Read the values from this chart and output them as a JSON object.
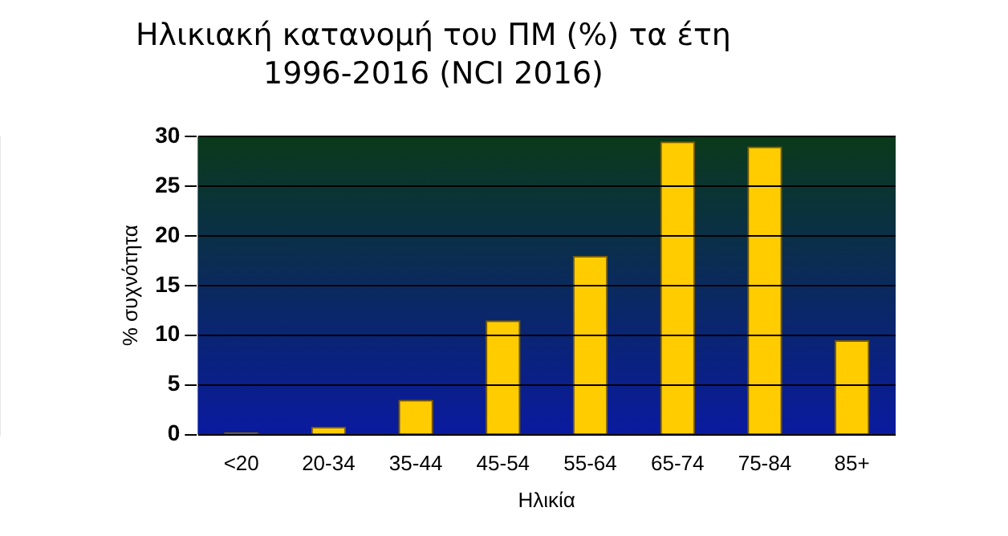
{
  "chart_data": {
    "type": "bar",
    "title": "Ηλικιακή κατανομή του ΠΜ (%) τα έτη 1996-2016 (NCI 2016)",
    "xlabel": "Ηλικία",
    "ylabel": "% συχνότητα",
    "categories": [
      "<20",
      "20-34",
      "35-44",
      "45-54",
      "55-64",
      "65-74",
      "75-84",
      "85+"
    ],
    "values": [
      0.2,
      0.8,
      3.5,
      11.5,
      18,
      29.5,
      29,
      9.5
    ],
    "color": "#ffcc00",
    "ylim": [
      0,
      30
    ],
    "yticks": [
      0,
      5,
      10,
      15,
      20,
      25,
      30
    ],
    "grid": "y",
    "legend": false
  }
}
